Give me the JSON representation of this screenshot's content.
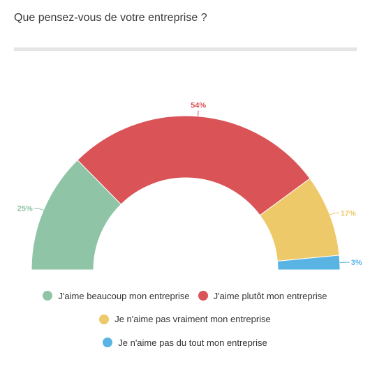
{
  "title": "Que pensez-vous de votre entreprise ?",
  "chart_data": {
    "type": "pie",
    "variant": "semicircle-donut",
    "title": "Que pensez-vous de votre entreprise ?",
    "legend_position": "bottom",
    "slices": [
      {
        "label": "J'aime beaucoup mon entreprise",
        "value": 25,
        "value_label": "25%",
        "color": "#8fc4a6"
      },
      {
        "label": "J'aime plutôt mon entreprise",
        "value": 54,
        "value_label": "54%",
        "color": "#d95357"
      },
      {
        "label": "Je n'aime pas vraiment mon entreprise",
        "value": 17,
        "value_label": "17%",
        "color": "#eec96a"
      },
      {
        "label": "Je n'aime pas du tout mon entreprise",
        "value": 3,
        "value_label": "3%",
        "color": "#5ab4e3"
      }
    ]
  }
}
